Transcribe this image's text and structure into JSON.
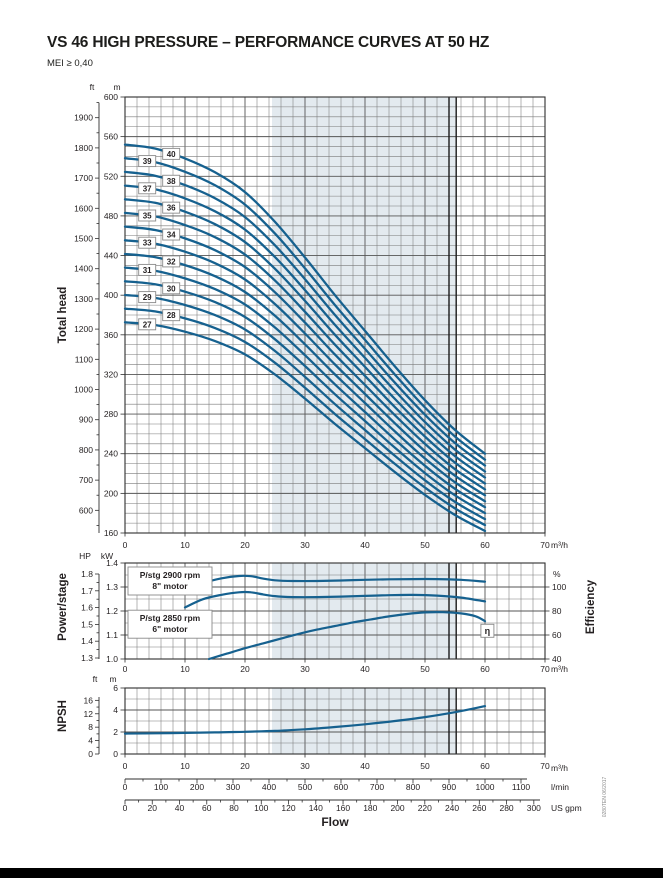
{
  "header": {
    "title": "VS 46 HIGH PRESSURE – PERFORMANCE CURVES AT 50 HZ",
    "subtitle": "MEI ≥ 0,40"
  },
  "colors": {
    "curve": "#16618f",
    "band": "#e3eaef",
    "grid": "#7a7a7a",
    "grid_major": "#555555",
    "frame": "#2f2f2f",
    "limit_line": "#1b1b1b",
    "text": "#231f20",
    "box_border": "#8a8a8a"
  },
  "flow": {
    "label": "Flow",
    "m3h": {
      "unit": "m³/h",
      "ticks": [
        0,
        10,
        20,
        30,
        40,
        50,
        60,
        70
      ]
    },
    "lmin": {
      "unit": "l/min",
      "ticks": [
        0,
        100,
        200,
        300,
        400,
        500,
        600,
        700,
        800,
        900,
        1000,
        1100
      ]
    },
    "usgpm": {
      "unit": "US gpm",
      "ticks": [
        0,
        20,
        40,
        60,
        80,
        100,
        120,
        140,
        160,
        180,
        200,
        220,
        240,
        260,
        280,
        300
      ]
    }
  },
  "doc_code": "0280TEN 06/2017",
  "chart_data": [
    {
      "id": "head",
      "type": "line",
      "title": "Total head vs Flow, stages 27–40",
      "ylabel": "Total head",
      "xlabel": "Flow",
      "y_m": {
        "header": "m",
        "ticks": [
          600,
          560,
          520,
          480,
          440,
          400,
          360,
          320,
          280,
          240,
          200,
          160
        ],
        "min": 160,
        "max": 600,
        "grid_step": 10
      },
      "y_ft": {
        "header": "ft",
        "ticks": [
          1900,
          1800,
          1700,
          1600,
          1500,
          1400,
          1300,
          1200,
          1100,
          1000,
          900,
          800,
          700,
          600
        ],
        "minor_step": 50,
        "minor_min": 550,
        "minor_max": 1950
      },
      "x_range": [
        0,
        70
      ],
      "band_q": [
        24.5,
        55.2
      ],
      "limit_q": [
        54.0,
        55.2
      ],
      "stages": [
        27,
        28,
        29,
        30,
        31,
        32,
        33,
        34,
        35,
        36,
        37,
        38,
        39,
        40
      ],
      "per_stage_head": {
        "q": [
          0,
          5,
          10,
          15,
          20,
          25,
          30,
          35,
          40,
          45,
          50,
          55,
          60
        ],
        "m": [
          13.8,
          13.7,
          13.45,
          13.1,
          12.6,
          11.85,
          10.95,
          10.0,
          9.1,
          8.2,
          7.35,
          6.6,
          6.0
        ]
      },
      "label_q": {
        "odd": 3.7,
        "even": 7.7
      }
    },
    {
      "id": "power",
      "type": "line",
      "title": "Power per stage and efficiency vs Flow",
      "ylabel_left": "Power/stage",
      "ylabel_right": "Efficiency",
      "y_kw": {
        "header": "kW",
        "ticks": [
          "1.4",
          "1.3",
          "1.2",
          "1.1",
          "1.0"
        ],
        "min": 1.0,
        "max": 1.4,
        "grid_step": 0.05
      },
      "y_hp": {
        "header": "HP",
        "ticks": [
          "1.8",
          "1.7",
          "1.6",
          "1.5",
          "1.4",
          "1.3"
        ],
        "minor_step": 0.05
      },
      "y_pct": {
        "header": "%",
        "ticks": [
          100,
          80,
          60,
          40
        ]
      },
      "band_q": [
        24.5,
        55.2
      ],
      "limit_q": [
        54.0,
        55.2
      ],
      "series": [
        {
          "name": "P/stg 2900 rpm 8\" motor",
          "axis": "kw",
          "x": [
            10,
            13,
            16,
            19,
            21,
            23,
            25,
            28,
            32,
            36,
            40,
            44,
            48,
            52,
            56,
            60
          ],
          "y": [
            1.285,
            1.316,
            1.336,
            1.346,
            1.345,
            1.335,
            1.328,
            1.325,
            1.325,
            1.327,
            1.33,
            1.332,
            1.333,
            1.333,
            1.33,
            1.322
          ]
        },
        {
          "name": "P/stg 2850 rpm 6\" motor",
          "axis": "kw",
          "x": [
            10,
            13,
            16,
            19,
            21,
            23,
            25,
            28,
            32,
            36,
            40,
            44,
            48,
            52,
            56,
            60
          ],
          "y": [
            1.215,
            1.249,
            1.267,
            1.278,
            1.278,
            1.269,
            1.262,
            1.258,
            1.258,
            1.26,
            1.263,
            1.266,
            1.267,
            1.264,
            1.256,
            1.24
          ]
        },
        {
          "name": "η",
          "axis": "pct",
          "x": [
            14,
            17,
            20,
            23,
            26,
            29,
            32,
            35,
            38,
            41,
            44,
            47,
            50,
            53,
            56,
            58.5,
            60
          ],
          "y": [
            40,
            44.5,
            49,
            53,
            57,
            61,
            64.5,
            67.5,
            70.5,
            73,
            75.5,
            77.5,
            78.8,
            79,
            78,
            75.5,
            71.5
          ]
        }
      ],
      "annotations": [
        {
          "lines": [
            "P/stg 2900 rpm",
            "8\" motor"
          ],
          "q": 7.5,
          "kw": 1.325
        },
        {
          "lines": [
            "P/stg 2850 rpm",
            "6\" motor"
          ],
          "q": 7.5,
          "kw": 1.145
        },
        {
          "lines": [
            "η"
          ],
          "q": 60.4,
          "pct": 63.5
        }
      ]
    },
    {
      "id": "npsh",
      "type": "line",
      "title": "NPSH vs Flow",
      "ylabel": "NPSH",
      "y_m": {
        "header": "m",
        "ticks": [
          6,
          4,
          2,
          0
        ],
        "min": 0,
        "max": 6,
        "grid_step": 1
      },
      "y_ft": {
        "header": "ft",
        "ticks": [
          16,
          12,
          8,
          4,
          0
        ],
        "minor_step": 2
      },
      "band_q": [
        24.5,
        55.2
      ],
      "limit_q": [
        54.0,
        55.2
      ],
      "series": [
        {
          "name": "NPSH",
          "axis": "m",
          "x": [
            0,
            5,
            10,
            15,
            20,
            25,
            30,
            35,
            40,
            45,
            50,
            55,
            60
          ],
          "y": [
            1.85,
            1.88,
            1.92,
            1.96,
            2.02,
            2.1,
            2.25,
            2.45,
            2.7,
            3.0,
            3.35,
            3.8,
            4.35
          ]
        }
      ]
    }
  ]
}
